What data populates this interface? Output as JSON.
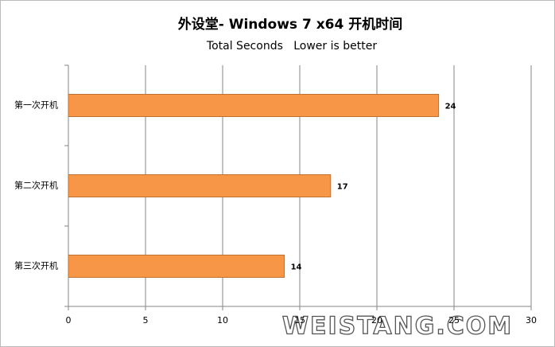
{
  "chart_data": {
    "type": "hbar",
    "title": "外设堂- Windows 7 x64 开机时间",
    "subtitle": "Total Seconds   Lower is better",
    "categories": [
      "第一次开机",
      "第二次开机",
      "第三次开机"
    ],
    "values": [
      24,
      17,
      14
    ],
    "color": "#f79646",
    "xlim": [
      0,
      30
    ],
    "xticks": [
      0,
      5,
      10,
      15,
      20,
      25,
      30
    ],
    "grid": true,
    "watermark": "WEISTANG.COM"
  }
}
